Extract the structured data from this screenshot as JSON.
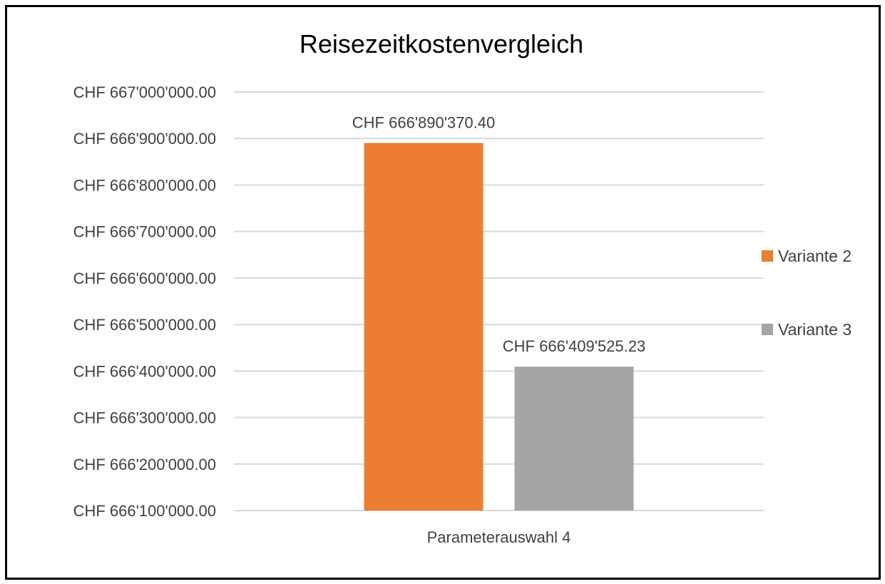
{
  "chart_data": {
    "type": "bar",
    "title": "Reisezeitkostenvergleich",
    "categories": [
      "Parameterauswahl 4"
    ],
    "series": [
      {
        "name": "Variante 2",
        "values": [
          666890370.4
        ],
        "data_label": "CHF 666'890'370.40",
        "color": "#ED7D31"
      },
      {
        "name": "Variante 3",
        "values": [
          666409525.23
        ],
        "data_label": "CHF 666'409'525.23",
        "color": "#A5A5A5"
      }
    ],
    "ylim": [
      666100000,
      667000000
    ],
    "y_ticks": [
      {
        "value": 667000000,
        "label": "CHF 667'000'000.00"
      },
      {
        "value": 666900000,
        "label": "CHF 666'900'000.00"
      },
      {
        "value": 666800000,
        "label": "CHF 666'800'000.00"
      },
      {
        "value": 666700000,
        "label": "CHF 666'700'000.00"
      },
      {
        "value": 666600000,
        "label": "CHF 666'600'000.00"
      },
      {
        "value": 666500000,
        "label": "CHF 666'500'000.00"
      },
      {
        "value": 666400000,
        "label": "CHF 666'400'000.00"
      },
      {
        "value": 666300000,
        "label": "CHF 666'300'000.00"
      },
      {
        "value": 666200000,
        "label": "CHF 666'200'000.00"
      },
      {
        "value": 666100000,
        "label": "CHF 666'100'000.00"
      }
    ],
    "xlabel": "",
    "ylabel": "",
    "grid": true,
    "legend_position": "right",
    "gridline_color": "#D9D9D9"
  }
}
